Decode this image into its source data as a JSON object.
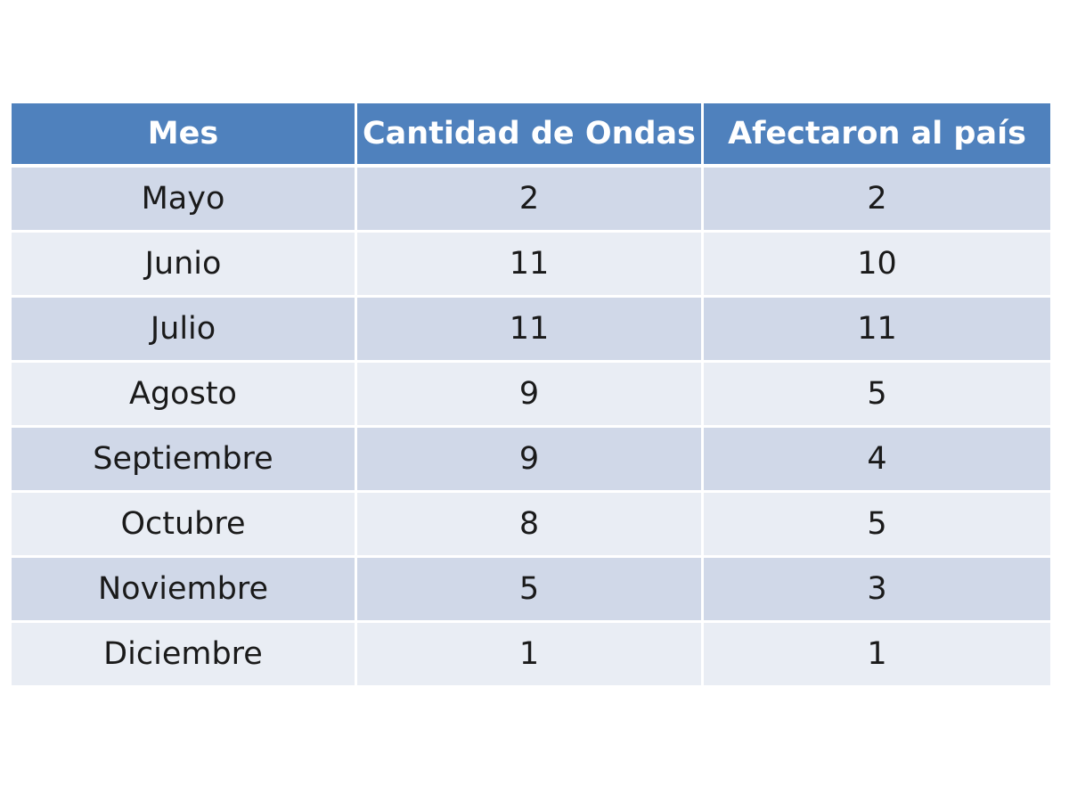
{
  "table": {
    "headers": [
      "Mes",
      "Cantidad de Ondas",
      "Afectaron al país"
    ],
    "rows": [
      [
        "Mayo",
        "2",
        "2"
      ],
      [
        "Junio",
        "11",
        "10"
      ],
      [
        "Julio",
        "11",
        "11"
      ],
      [
        "Agosto",
        "9",
        "5"
      ],
      [
        "Septiembre",
        "9",
        "4"
      ],
      [
        "Octubre",
        "8",
        "5"
      ],
      [
        "Noviembre",
        "5",
        "3"
      ],
      [
        "Diciembre",
        "1",
        "1"
      ]
    ]
  },
  "colors": {
    "header_bg": "#4f81bd",
    "row_band_dark": "#d0d8e8",
    "row_band_light": "#e9edf4"
  }
}
